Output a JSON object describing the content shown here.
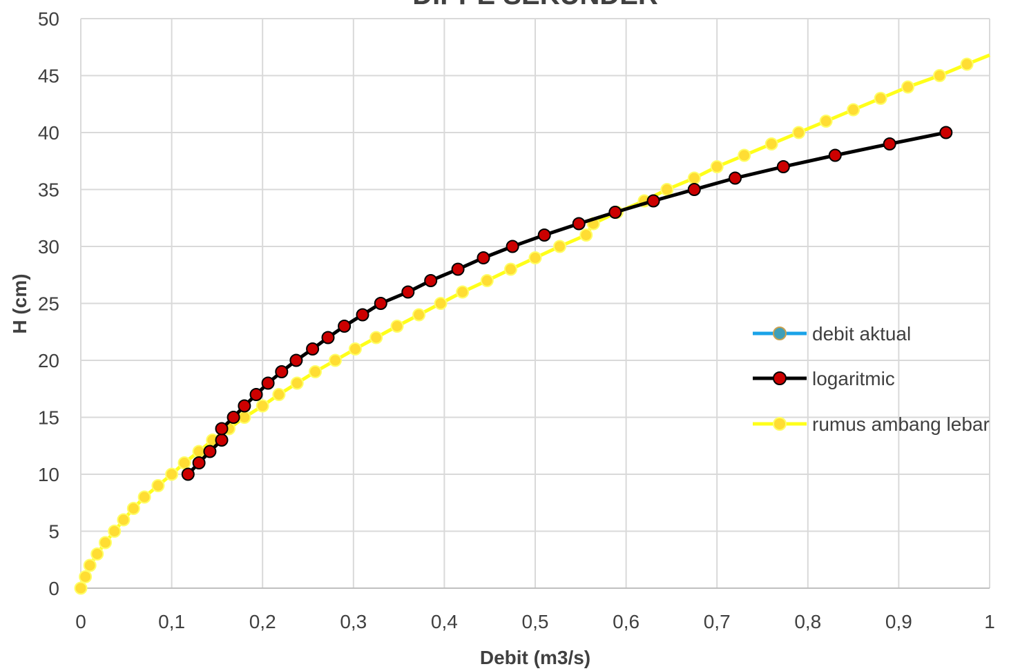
{
  "chart_data": {
    "type": "line",
    "title": "DIPPE SEKUNDER",
    "xlabel": "Debit (m3/s)",
    "ylabel": "H (cm)",
    "xlim": [
      0,
      1
    ],
    "ylim": [
      0,
      50
    ],
    "x_ticks": [
      "0",
      "0,1",
      "0,2",
      "0,3",
      "0,4",
      "0,5",
      "0,6",
      "0,7",
      "0,8",
      "0,9",
      "1"
    ],
    "y_ticks": [
      "0",
      "5",
      "10",
      "15",
      "20",
      "25",
      "30",
      "35",
      "40",
      "45",
      "50"
    ],
    "grid": true,
    "legend_position": "right",
    "series": [
      {
        "name": "debit aktual",
        "line_color": "#1aa3e8",
        "marker_color": "#3f9fb8",
        "points": []
      },
      {
        "name": "logaritmic",
        "line_color": "#000000",
        "marker_color": "#cc0000",
        "points": [
          [
            0.118,
            10
          ],
          [
            0.13,
            11
          ],
          [
            0.142,
            12
          ],
          [
            0.155,
            13
          ],
          [
            0.155,
            14
          ],
          [
            0.168,
            15
          ],
          [
            0.18,
            16
          ],
          [
            0.193,
            17
          ],
          [
            0.206,
            18
          ],
          [
            0.221,
            19
          ],
          [
            0.237,
            20
          ],
          [
            0.255,
            21
          ],
          [
            0.272,
            22
          ],
          [
            0.29,
            23
          ],
          [
            0.31,
            24
          ],
          [
            0.33,
            25
          ],
          [
            0.36,
            26
          ],
          [
            0.385,
            27
          ],
          [
            0.415,
            28
          ],
          [
            0.443,
            29
          ],
          [
            0.475,
            30
          ],
          [
            0.51,
            31
          ],
          [
            0.548,
            32
          ],
          [
            0.588,
            33
          ],
          [
            0.63,
            34
          ],
          [
            0.675,
            35
          ],
          [
            0.72,
            36
          ],
          [
            0.773,
            37
          ],
          [
            0.83,
            38
          ],
          [
            0.89,
            39
          ],
          [
            0.952,
            40
          ]
        ]
      },
      {
        "name": "rumus ambang lebar",
        "line_color": "#ffff1a",
        "marker_color": "#ffdd33",
        "points": [
          [
            0,
            0
          ],
          [
            0.005,
            1
          ],
          [
            0.01,
            2
          ],
          [
            0.018,
            3
          ],
          [
            0.027,
            4
          ],
          [
            0.037,
            5
          ],
          [
            0.047,
            6
          ],
          [
            0.058,
            7
          ],
          [
            0.07,
            8
          ],
          [
            0.085,
            9
          ],
          [
            0.1,
            10
          ],
          [
            0.114,
            11
          ],
          [
            0.13,
            12
          ],
          [
            0.145,
            13
          ],
          [
            0.163,
            14
          ],
          [
            0.18,
            15
          ],
          [
            0.2,
            16
          ],
          [
            0.218,
            17
          ],
          [
            0.238,
            18
          ],
          [
            0.258,
            19
          ],
          [
            0.28,
            20
          ],
          [
            0.302,
            21
          ],
          [
            0.325,
            22
          ],
          [
            0.348,
            23
          ],
          [
            0.372,
            24
          ],
          [
            0.396,
            25
          ],
          [
            0.42,
            26
          ],
          [
            0.447,
            27
          ],
          [
            0.473,
            28
          ],
          [
            0.5,
            29
          ],
          [
            0.527,
            30
          ],
          [
            0.556,
            31
          ],
          [
            0.564,
            32
          ],
          [
            0.59,
            33
          ],
          [
            0.62,
            34
          ],
          [
            0.645,
            35
          ],
          [
            0.675,
            36
          ],
          [
            0.7,
            37
          ],
          [
            0.73,
            38
          ],
          [
            0.76,
            39
          ],
          [
            0.79,
            40
          ],
          [
            0.82,
            41
          ],
          [
            0.85,
            42
          ],
          [
            0.88,
            43
          ],
          [
            0.91,
            44
          ],
          [
            0.945,
            45
          ],
          [
            0.975,
            46
          ],
          [
            1.0,
            46.8
          ]
        ]
      }
    ]
  }
}
